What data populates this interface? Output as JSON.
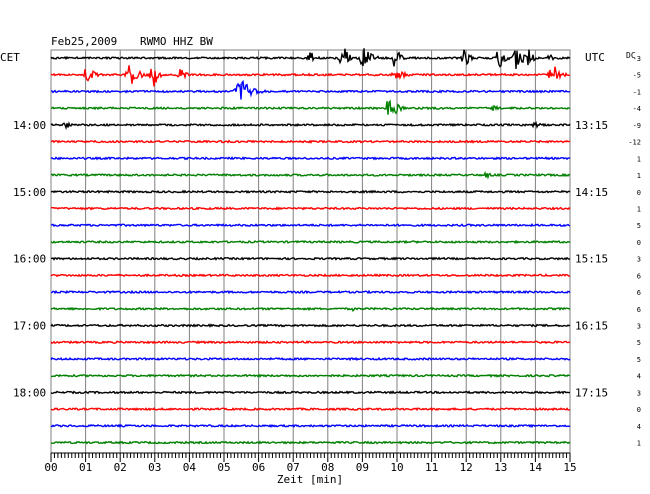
{
  "header": {
    "date": "Feb25,2009",
    "station": "RWMO HHZ BW",
    "left_zone": "CET",
    "right_zone": "UTC",
    "dc_label": "DC"
  },
  "chart_data": {
    "type": "line",
    "title": "Feb25,2009 RWMO HHZ BW",
    "xlabel": "Zeit [min]",
    "ylabel": "",
    "xlim": [
      0,
      15
    ],
    "x_ticks": [
      "00",
      "01",
      "02",
      "03",
      "04",
      "05",
      "06",
      "07",
      "08",
      "09",
      "10",
      "11",
      "12",
      "13",
      "14",
      "15"
    ],
    "grid": true,
    "trace_colors": [
      "#000000",
      "#ff0000",
      "#0000ff",
      "#008000"
    ],
    "left_hour_labels": [
      {
        "row": 4,
        "label": "14:00"
      },
      {
        "row": 8,
        "label": "15:00"
      },
      {
        "row": 12,
        "label": "16:00"
      },
      {
        "row": 16,
        "label": "17:00"
      },
      {
        "row": 20,
        "label": "18:00"
      }
    ],
    "right_hour_labels": [
      {
        "row": 4,
        "label": "13:15"
      },
      {
        "row": 8,
        "label": "14:15"
      },
      {
        "row": 12,
        "label": "15:15"
      },
      {
        "row": 16,
        "label": "16:15"
      },
      {
        "row": 20,
        "label": "17:15"
      }
    ],
    "dc_offsets": [
      "-3",
      "-5",
      "-1",
      "-4",
      "-9",
      "-12",
      "1",
      "1",
      "0",
      "1",
      "5",
      "0",
      "3",
      "6",
      "6",
      "6",
      "3",
      "5",
      "5",
      "4",
      "3",
      "0",
      "4",
      "1"
    ],
    "rows": [
      {
        "events": [
          {
            "t": 7.5,
            "a": 8,
            "w": 0.15
          },
          {
            "t": 8.45,
            "a": 14,
            "w": 0.2
          },
          {
            "t": 9.05,
            "a": 15,
            "w": 0.2
          },
          {
            "t": 9.95,
            "a": 12,
            "w": 0.15
          },
          {
            "t": 11.95,
            "a": 10,
            "w": 0.15
          },
          {
            "t": 12.95,
            "a": 13,
            "w": 0.15
          },
          {
            "t": 13.45,
            "a": 12,
            "w": 0.2
          },
          {
            "t": 13.8,
            "a": 10,
            "w": 0.15
          },
          {
            "t": 14.4,
            "a": 6,
            "w": 0.1
          }
        ]
      },
      {
        "events": [
          {
            "t": 1.05,
            "a": 9,
            "w": 0.2
          },
          {
            "t": 2.3,
            "a": 11,
            "w": 0.25
          },
          {
            "t": 2.9,
            "a": 8,
            "w": 0.15
          },
          {
            "t": 3.0,
            "a": 16,
            "w": 0.1
          },
          {
            "t": 3.75,
            "a": 7,
            "w": 0.15
          },
          {
            "t": 10.0,
            "a": 6,
            "w": 0.25
          },
          {
            "t": 14.5,
            "a": 12,
            "w": 0.2
          }
        ]
      },
      {
        "events": [
          {
            "t": 5.5,
            "a": 14,
            "w": 0.3
          }
        ]
      },
      {
        "events": [
          {
            "t": 9.8,
            "a": 12,
            "w": 0.25
          },
          {
            "t": 12.8,
            "a": 3,
            "w": 0.2
          }
        ]
      },
      {
        "events": [
          {
            "t": 0.45,
            "a": 4,
            "w": 0.2
          },
          {
            "t": 14.0,
            "a": 3,
            "w": 0.2
          }
        ]
      },
      {
        "events": []
      },
      {
        "events": []
      },
      {
        "events": [
          {
            "t": 12.6,
            "a": 3,
            "w": 0.2
          }
        ]
      },
      {
        "events": []
      },
      {
        "events": []
      },
      {
        "events": []
      },
      {
        "events": []
      },
      {
        "events": []
      },
      {
        "events": []
      },
      {
        "events": []
      },
      {
        "events": [
          {
            "t": 8.7,
            "a": 3,
            "w": 0.08
          },
          {
            "t": 9.8,
            "a": 3,
            "w": 0.08
          }
        ]
      },
      {
        "events": []
      },
      {
        "events": []
      },
      {
        "events": []
      },
      {
        "events": []
      },
      {
        "events": []
      },
      {
        "events": []
      },
      {
        "events": []
      },
      {
        "events": []
      }
    ]
  }
}
